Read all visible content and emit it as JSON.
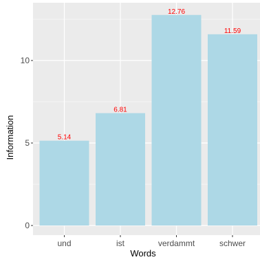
{
  "chart_data": {
    "type": "bar",
    "categories": [
      "und",
      "ist",
      "verdammt",
      "schwer"
    ],
    "values": [
      5.14,
      6.81,
      12.76,
      11.59
    ],
    "data_labels": [
      "5.14",
      "6.81",
      "12.76",
      "11.59"
    ],
    "xlabel": "Words",
    "ylabel": "Information",
    "ylim": [
      0,
      13.4
    ],
    "yticks": [
      0,
      5,
      10
    ],
    "ytick_labels": [
      "0",
      "5",
      "10"
    ],
    "grid": true,
    "colors": {
      "panel_background": "#ebebeb",
      "grid_major": "#ffffff",
      "bar_fill": "#add8e6",
      "data_label": "#ff0000"
    }
  }
}
